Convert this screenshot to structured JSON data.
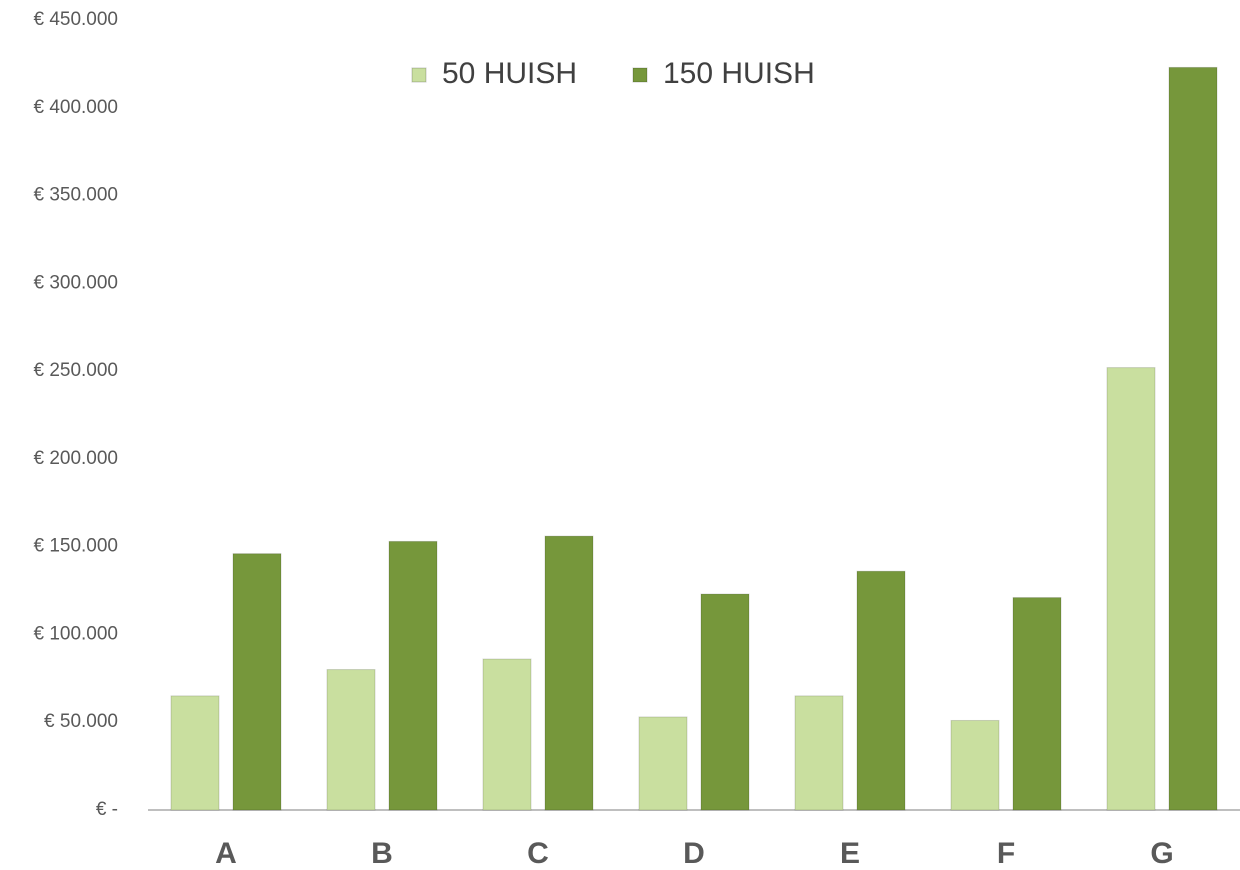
{
  "chart_data": {
    "type": "bar",
    "categories": [
      "A",
      "B",
      "C",
      "D",
      "E",
      "F",
      "G"
    ],
    "series": [
      {
        "name": "50 HUISH",
        "color": "#c9df9f",
        "values": [
          65000,
          80000,
          86000,
          53000,
          65000,
          51000,
          252000
        ]
      },
      {
        "name": "150 HUISH",
        "color": "#76973b",
        "values": [
          146000,
          153000,
          156000,
          123000,
          136000,
          121000,
          423000
        ]
      }
    ],
    "ylim": [
      0,
      450000
    ],
    "yticks": [
      {
        "value": 0,
        "label": "€ -"
      },
      {
        "value": 50000,
        "label": "€ 50.000"
      },
      {
        "value": 100000,
        "label": "€ 100.000"
      },
      {
        "value": 150000,
        "label": "€ 150.000"
      },
      {
        "value": 200000,
        "label": "€ 200.000"
      },
      {
        "value": 250000,
        "label": "€ 250.000"
      },
      {
        "value": 300000,
        "label": "€ 300.000"
      },
      {
        "value": 350000,
        "label": "€ 350.000"
      },
      {
        "value": 400000,
        "label": "€ 400.000"
      },
      {
        "value": 450000,
        "label": "€ 450.000"
      }
    ],
    "grid": false,
    "legend": "top"
  }
}
